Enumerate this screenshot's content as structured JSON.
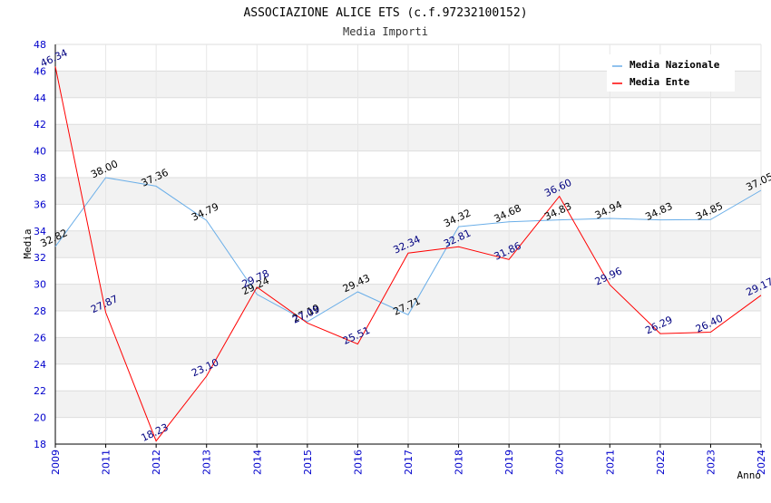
{
  "chart_data": {
    "type": "line",
    "title": "ASSOCIAZIONE ALICE ETS (c.f.97232100152)",
    "subtitle": "Media Importi",
    "xlabel": "Anno",
    "ylabel": "Media",
    "ylim": [
      18,
      48
    ],
    "yticks": [
      "18",
      "20",
      "22",
      "24",
      "26",
      "28",
      "30",
      "32",
      "34",
      "36",
      "38",
      "40",
      "42",
      "44",
      "46",
      "48"
    ],
    "categories": [
      "2009",
      "2011",
      "2012",
      "2013",
      "2014",
      "2015",
      "2016",
      "2017",
      "2018",
      "2019",
      "2020",
      "2021",
      "2022",
      "2023",
      "2024"
    ],
    "legend_position": "top-right",
    "grid": true,
    "series": [
      {
        "name": "Media Nazionale",
        "color": "#6aaee8",
        "label_color": "#000000",
        "values": [
          32.82,
          38.0,
          37.36,
          34.79,
          29.24,
          27.19,
          29.43,
          27.71,
          34.32,
          34.68,
          34.83,
          34.94,
          34.83,
          34.85,
          37.05
        ],
        "labels": [
          "32.82",
          "38.00",
          "37.36",
          "34.79",
          "29.24",
          "27.19",
          "29.43",
          "27.71",
          "34.32",
          "34.68",
          "34.83",
          "34.94",
          "34.83",
          "34.85",
          "37.05"
        ]
      },
      {
        "name": "Media Ente",
        "color": "#ff0000",
        "label_color": "#000080",
        "values": [
          46.34,
          27.87,
          18.23,
          23.1,
          29.78,
          27.09,
          25.51,
          32.34,
          32.81,
          31.86,
          36.6,
          29.96,
          26.29,
          26.4,
          29.17
        ],
        "labels": [
          "46.34",
          "27.87",
          "18.23",
          "23.10",
          "29.78",
          "27.09",
          "25.51",
          "32.34",
          "32.81",
          "31.86",
          "36.60",
          "29.96",
          "26.29",
          "26.40",
          "29.17"
        ]
      }
    ]
  }
}
